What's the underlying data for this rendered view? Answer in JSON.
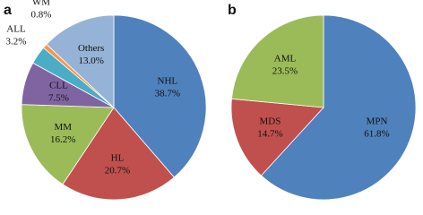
{
  "chart_data": [
    {
      "type": "pie",
      "label": "a",
      "categories": [
        "NHL",
        "HL",
        "MM",
        "CLL",
        "ALL",
        "WM",
        "Others"
      ],
      "values": [
        38.7,
        20.7,
        16.2,
        7.5,
        3.2,
        0.8,
        13.0
      ],
      "value_labels": [
        "38.7%",
        "20.7%",
        "16.2%",
        "7.5%",
        "3.2%",
        "0.8%",
        "13.0%"
      ],
      "colors": [
        "#4f81bd",
        "#c0504d",
        "#9bbb59",
        "#8064a2",
        "#4bacc6",
        "#f79646",
        "#95b3d7"
      ]
    },
    {
      "type": "pie",
      "label": "b",
      "categories": [
        "MPN",
        "MDS",
        "AML"
      ],
      "values": [
        61.8,
        14.7,
        23.5
      ],
      "value_labels": [
        "61.8%",
        "14.7%",
        "23.5%"
      ],
      "colors": [
        "#4f81bd",
        "#c0504d",
        "#9bbb59"
      ]
    }
  ]
}
